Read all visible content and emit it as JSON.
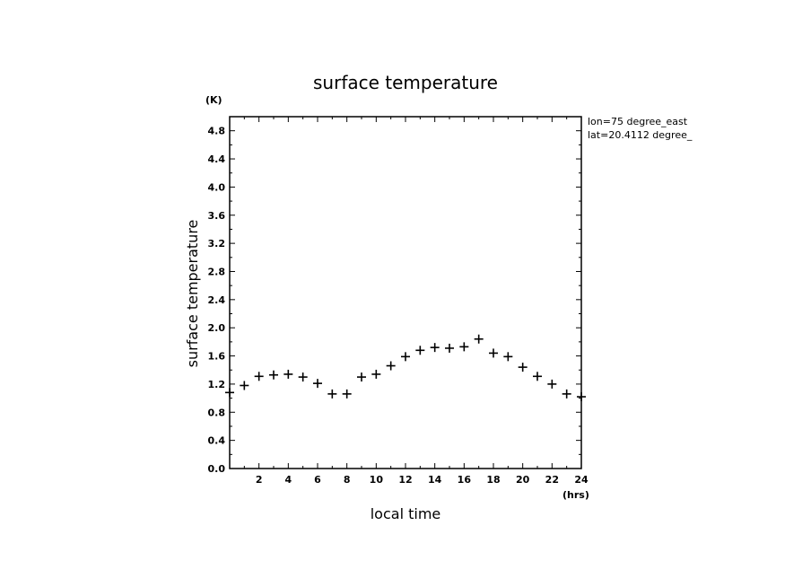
{
  "chart_data": {
    "type": "scatter",
    "title": "surface temperature",
    "xlabel": "local time",
    "ylabel": "surface temperature",
    "x_unit": "(hrs)",
    "y_unit": "(K)",
    "annotations": [
      "lon=75 degree_east",
      "lat=20.4112 degree_"
    ],
    "xlim": [
      0,
      24
    ],
    "ylim": [
      0,
      5
    ],
    "x_ticks": [
      2,
      4,
      6,
      8,
      10,
      12,
      14,
      16,
      18,
      20,
      22,
      24
    ],
    "y_ticks": [
      0.0,
      0.4,
      0.8,
      1.2,
      1.6,
      2.0,
      2.4,
      2.8,
      3.2,
      3.6,
      4.0,
      4.4,
      4.8
    ],
    "y_tick_labels": [
      "0.0",
      "0.4",
      "0.8",
      "1.2",
      "1.6",
      "2.0",
      "2.4",
      "2.8",
      "3.2",
      "3.6",
      "4.0",
      "4.4",
      "4.8"
    ],
    "grid": false,
    "marker": "+",
    "x": [
      0,
      1,
      2,
      3,
      4,
      5,
      6,
      7,
      8,
      9,
      10,
      11,
      12,
      13,
      14,
      15,
      16,
      17,
      18,
      19,
      20,
      21,
      22,
      23,
      24
    ],
    "y": [
      1.08,
      1.18,
      1.31,
      1.33,
      1.34,
      1.3,
      1.21,
      1.06,
      1.06,
      1.3,
      1.34,
      1.46,
      1.59,
      1.68,
      1.72,
      1.71,
      1.73,
      1.84,
      1.64,
      1.59,
      1.44,
      1.31,
      1.2,
      1.06,
      1.02
    ]
  }
}
